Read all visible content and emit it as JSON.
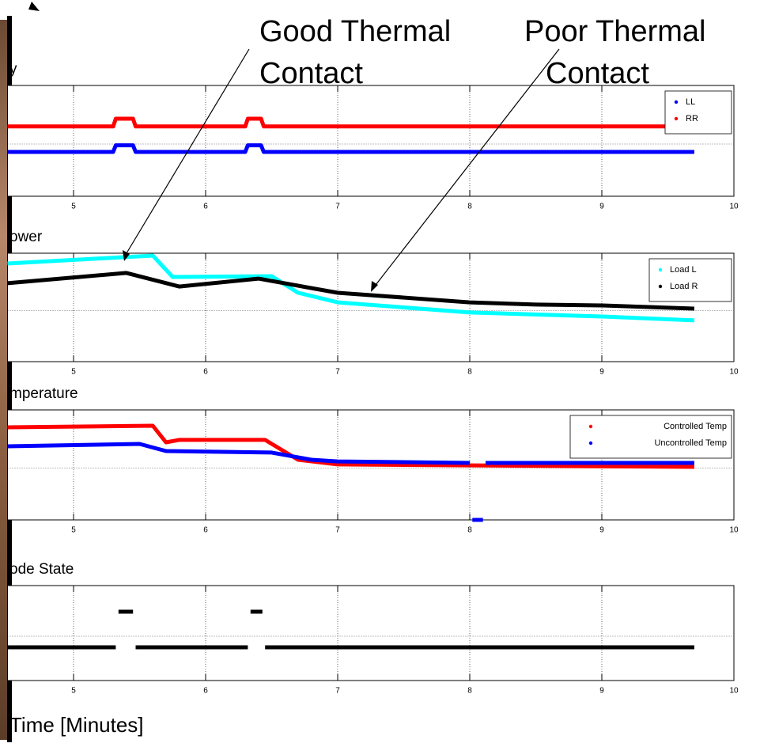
{
  "chart_data": [
    {
      "type": "line",
      "title": "y",
      "xlim": [
        4.5,
        10
      ],
      "xticks": [
        5,
        6,
        7,
        8,
        9,
        10
      ],
      "ylim": [
        0,
        1
      ],
      "grid": true,
      "legend": "upper right",
      "series": [
        {
          "name": "LL",
          "color": "#0000ff",
          "x": [
            4.5,
            5.3,
            5.32,
            5.45,
            5.47,
            6.3,
            6.32,
            6.42,
            6.44,
            9.7
          ],
          "values": [
            0.4,
            0.4,
            0.46,
            0.46,
            0.4,
            0.4,
            0.46,
            0.46,
            0.4,
            0.4
          ]
        },
        {
          "name": "RR",
          "color": "#ff0000",
          "x": [
            4.5,
            5.3,
            5.32,
            5.45,
            5.47,
            6.3,
            6.32,
            6.42,
            6.44,
            9.7
          ],
          "values": [
            0.63,
            0.63,
            0.7,
            0.7,
            0.63,
            0.63,
            0.7,
            0.7,
            0.63,
            0.63
          ]
        }
      ]
    },
    {
      "type": "line",
      "title": "ower",
      "xlim": [
        4.5,
        10
      ],
      "xticks": [
        5,
        6,
        7,
        8,
        9,
        10
      ],
      "ylim": [
        0,
        1
      ],
      "grid": true,
      "legend": "upper right",
      "series": [
        {
          "name": "Load L",
          "color": "#00ffff",
          "x": [
            4.5,
            5.6,
            5.75,
            6.5,
            6.7,
            7,
            8,
            9,
            9.7
          ],
          "values": [
            0.905,
            0.978,
            0.781,
            0.788,
            0.635,
            0.547,
            0.453,
            0.416,
            0.38
          ]
        },
        {
          "name": "Load R",
          "color": "#000000",
          "x": [
            4.5,
            5.4,
            5.8,
            6.4,
            7,
            8,
            8.5,
            9,
            9.7
          ],
          "values": [
            0.723,
            0.818,
            0.693,
            0.766,
            0.635,
            0.547,
            0.526,
            0.518,
            0.489
          ]
        }
      ]
    },
    {
      "type": "line",
      "title": "mperature",
      "xlim": [
        4.5,
        10
      ],
      "xticks": [
        5,
        6,
        7,
        8,
        9,
        10
      ],
      "ylim": [
        0,
        1
      ],
      "grid": true,
      "legend": "upper right",
      "series": [
        {
          "name": "Controlled Temp",
          "color": "#ff0000",
          "x": [
            4.5,
            5.6,
            5.7,
            5.8,
            6.45,
            6.7,
            7,
            9.7
          ],
          "values": [
            0.842,
            0.856,
            0.705,
            0.727,
            0.727,
            0.547,
            0.504,
            0.482
          ]
        },
        {
          "name": "Uncontrolled Temp",
          "color": "#0000ff",
          "x": [
            4.5,
            5.5,
            5.7,
            6.5,
            6.8,
            7,
            8.0,
            8.01,
            8.02,
            8.1,
            8.11,
            8.12,
            9.7
          ],
          "values": [
            0.669,
            0.691,
            0.626,
            0.612,
            0.547,
            0.532,
            0.518,
            null,
            0.0,
            0.0,
            null,
            0.518,
            0.518
          ]
        }
      ]
    },
    {
      "type": "line",
      "title": "ode State",
      "xlim": [
        4.5,
        10
      ],
      "xticks": [
        5,
        6,
        7,
        8,
        9,
        10
      ],
      "ylim": [
        0,
        1
      ],
      "grid": true,
      "series": [
        {
          "color": "#000000",
          "x": [
            4.5,
            5.32,
            5.33,
            5.34,
            5.45,
            5.46,
            5.47,
            6.32,
            6.33,
            6.34,
            6.43,
            6.44,
            6.45,
            9.7
          ],
          "values": [
            0.35,
            0.35,
            null,
            0.725,
            0.725,
            null,
            0.35,
            0.35,
            null,
            0.725,
            0.725,
            null,
            0.35,
            0.35
          ]
        }
      ]
    }
  ],
  "annotations": [
    [
      "Good Thermal",
      "Contact"
    ],
    [
      "Poor Thermal",
      "Contact"
    ]
  ],
  "x_label": "Time [Minutes]"
}
